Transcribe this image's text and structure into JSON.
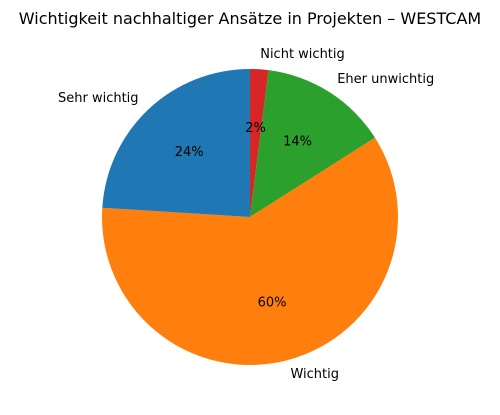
{
  "chart_data": {
    "type": "pie",
    "title": "Wichtigkeit nachhaltiger Ansätze in Projekten – WESTCAM",
    "slices": [
      {
        "label": "Nicht wichtig",
        "value": 2,
        "percent_label": "2%",
        "color": "#d62728"
      },
      {
        "label": "Eher unwichtig",
        "value": 14,
        "percent_label": "14%",
        "color": "#2ca02c"
      },
      {
        "label": "Wichtig",
        "value": 60,
        "percent_label": "60%",
        "color": "#ff7f0e"
      },
      {
        "label": "Sehr wichtig",
        "value": 24,
        "percent_label": "24%",
        "color": "#1f77b4"
      }
    ],
    "start_angle_deg": 90,
    "direction": "clockwise",
    "legend": "none"
  }
}
